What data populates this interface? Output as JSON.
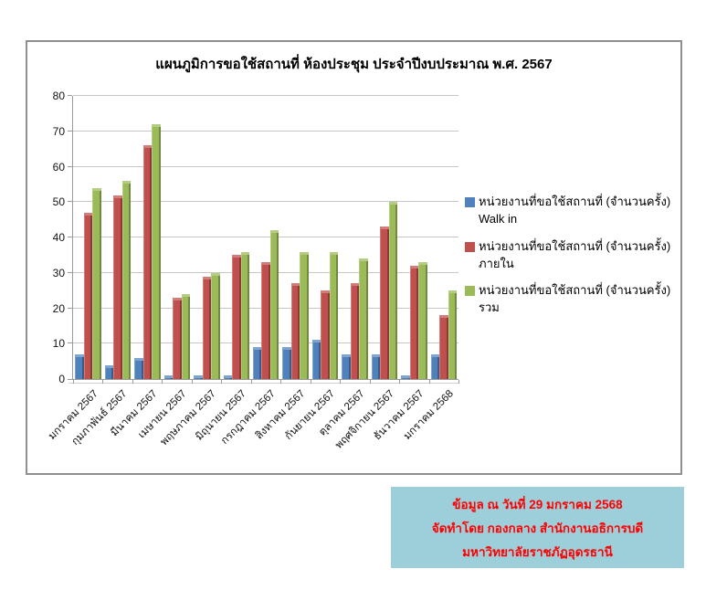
{
  "chart_data": {
    "type": "bar",
    "title": "แผนภูมิการขอใช้สถานที่ ห้องประชุม ประจำปีงบประมาณ พ.ศ. 2567",
    "categories": [
      "มกราคม 2567",
      "กุมภาพันธ์ 2567",
      "มีนาคม 2567",
      "เมษายน 2567",
      "พฤษภาคม 2567",
      "มิถุนายน 2567",
      "กรกฎาคม 2567",
      "สิงหาคม 2567",
      "กันยายน 2567",
      "ตุลาคม 2567",
      "พฤศจิกายน 2567",
      "ธันวาคม 2567",
      "มกราคม 2568"
    ],
    "series": [
      {
        "key": "walk-in",
        "name": "หน่วยงานที่ขอใช้สถานที่ (จำนวนครั้ง) Walk in",
        "color": "#4f81bd",
        "color_light": "#7fa5cf",
        "color_dark": "#395d87",
        "values": [
          7,
          4,
          6,
          1,
          1,
          1,
          9,
          9,
          11,
          7,
          7,
          1,
          7
        ]
      },
      {
        "key": "internal",
        "name": "หน่วยงานที่ขอใช้สถานที่ (จำนวนครั้ง) ภายใน",
        "color": "#c0504d",
        "color_light": "#d17d7b",
        "color_dark": "#8c3a38",
        "values": [
          47,
          52,
          66,
          23,
          29,
          35,
          33,
          27,
          25,
          27,
          43,
          32,
          18
        ]
      },
      {
        "key": "total",
        "name": "หน่วยงานที่ขอใช้สถานที่ (จำนวนครั้ง) รวม",
        "color": "#9bbb59",
        "color_light": "#b4cd83",
        "color_dark": "#718941",
        "values": [
          54,
          56,
          72,
          24,
          30,
          36,
          42,
          36,
          36,
          34,
          50,
          33,
          25
        ]
      },
      {
        "key": "_note",
        "name": "",
        "color": "",
        "color_light": "",
        "color_dark": "",
        "values": []
      }
    ],
    "ylim": [
      0,
      80
    ],
    "yticks": [
      0,
      10,
      20,
      30,
      40,
      50,
      60,
      70,
      80
    ],
    "grid": true,
    "legend_position": "right"
  },
  "footer_note": {
    "lines": [
      "ข้อมูล ณ วันที่ 29 มกราคม 2568",
      "จัดทำโดย กองกลาง สำนักงานอธิการบดี",
      "มหาวิทยาลัยราชภัฏอุดรธานี"
    ],
    "bg_color": "#9ccfda",
    "text_color": "#ff0000"
  }
}
